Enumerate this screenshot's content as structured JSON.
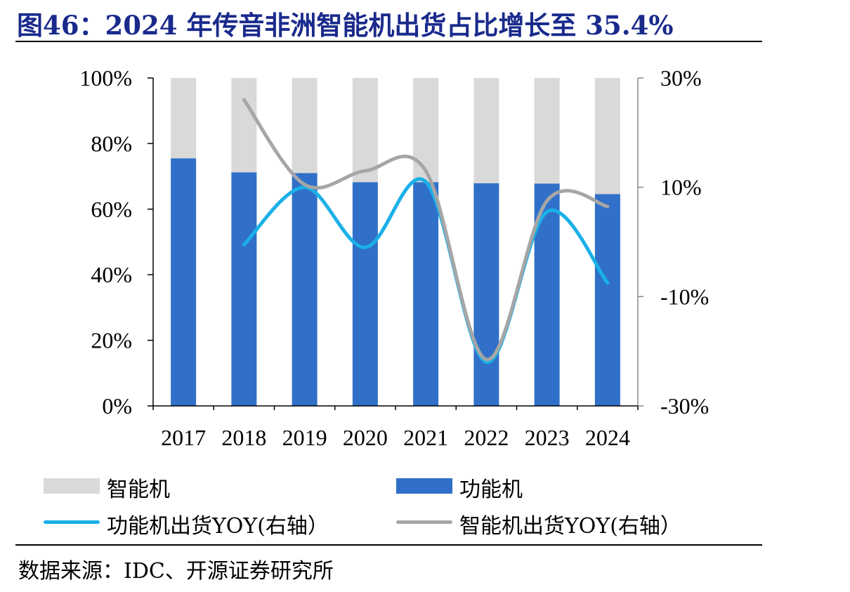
{
  "title": "图46：2024 年传音非洲智能机出货占比增长至 35.4%",
  "source": "数据来源：IDC、开源证券研究所",
  "chart_data": {
    "type": "bar",
    "stacked": true,
    "categories": [
      "2017",
      "2018",
      "2019",
      "2020",
      "2021",
      "2022",
      "2023",
      "2024"
    ],
    "series": [
      {
        "name": "功能机",
        "axis": "left",
        "color": "#3070c8",
        "values": [
          75.5,
          71.2,
          71.0,
          68.2,
          68.2,
          67.9,
          67.8,
          64.6
        ]
      },
      {
        "name": "智能机",
        "axis": "left",
        "color": "#d9d9d9",
        "values": [
          24.5,
          28.8,
          29.0,
          31.8,
          31.8,
          32.1,
          32.2,
          35.4
        ]
      },
      {
        "name": "功能机出货YOY(右轴）",
        "axis": "right",
        "type": "line",
        "color": "#1ab0e8",
        "values": [
          null,
          -0.5,
          10.0,
          -1.0,
          11.0,
          -22.0,
          5.5,
          -7.5
        ]
      },
      {
        "name": "智能机出货YOY(右轴）",
        "axis": "right",
        "type": "line",
        "color": "#a6a6a6",
        "values": [
          null,
          26.0,
          10.5,
          13.0,
          13.0,
          -21.5,
          7.5,
          6.5
        ]
      }
    ],
    "y_left": {
      "range": [
        0,
        100
      ],
      "ticks": [
        0,
        20,
        40,
        60,
        80,
        100
      ],
      "tick_labels": [
        "0%",
        "20%",
        "40%",
        "60%",
        "80%",
        "100%"
      ]
    },
    "y_right": {
      "range": [
        -30,
        30
      ],
      "ticks": [
        -30,
        -10,
        10,
        30
      ],
      "tick_labels": [
        "-30%",
        "-10%",
        "10%",
        "30%"
      ]
    },
    "grid": false,
    "legend_position": "bottom"
  }
}
